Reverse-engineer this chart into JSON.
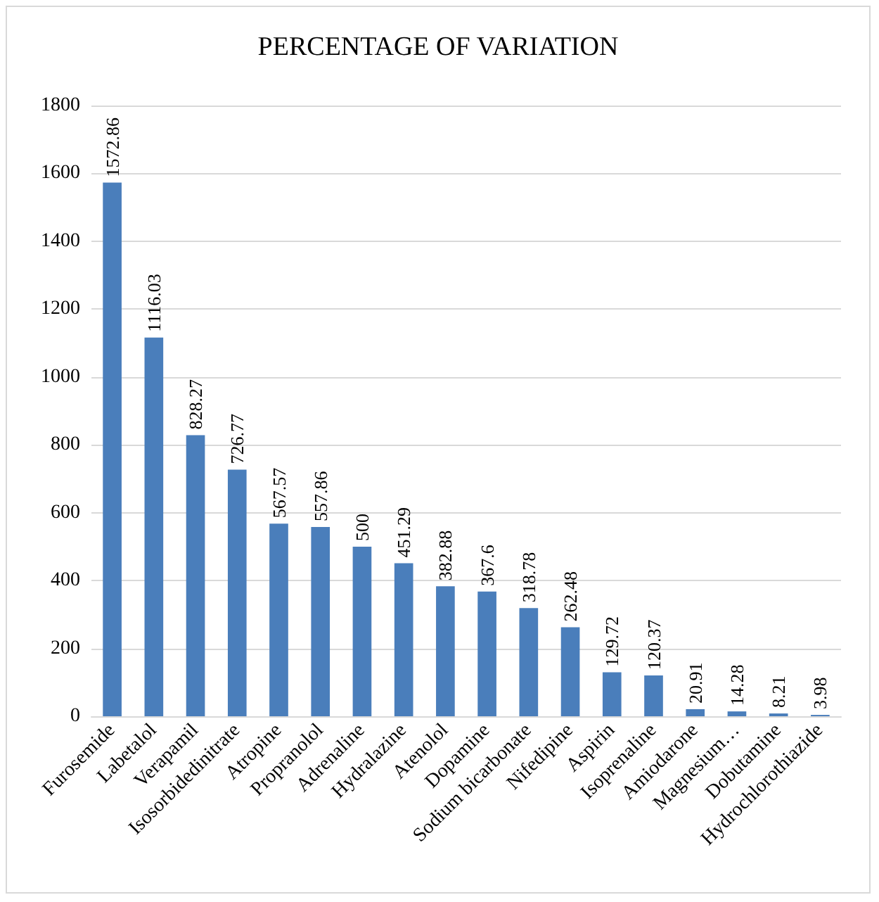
{
  "chart_data": {
    "type": "bar",
    "title": "PERCENTAGE OF VARIATION",
    "categories": [
      "Furosemide",
      "Labetalol",
      "Verapamil",
      "Isosorbidedinitrate",
      "Atropine",
      "Propranolol",
      "Adrenaline",
      "Hydralazine",
      "Atenolol",
      "Dopamine",
      "Sodium bicarbonate",
      "Nifedipine",
      "Aspirin",
      "Isoprenaline",
      "Amiodarone",
      "Magnesium…",
      "Dobutamine",
      "Hydrochlorothiazide"
    ],
    "values": [
      1572.86,
      1116.03,
      828.27,
      726.77,
      567.57,
      557.86,
      500,
      451.29,
      382.88,
      367.6,
      318.78,
      262.48,
      129.72,
      120.37,
      20.91,
      14.28,
      8.21,
      3.98
    ],
    "color": "#4a7ebb",
    "ylim": [
      0,
      1800
    ],
    "yticks": [
      0,
      200,
      400,
      600,
      800,
      1000,
      1200,
      1400,
      1600,
      1800
    ],
    "grid": "y",
    "data_labels": true
  }
}
